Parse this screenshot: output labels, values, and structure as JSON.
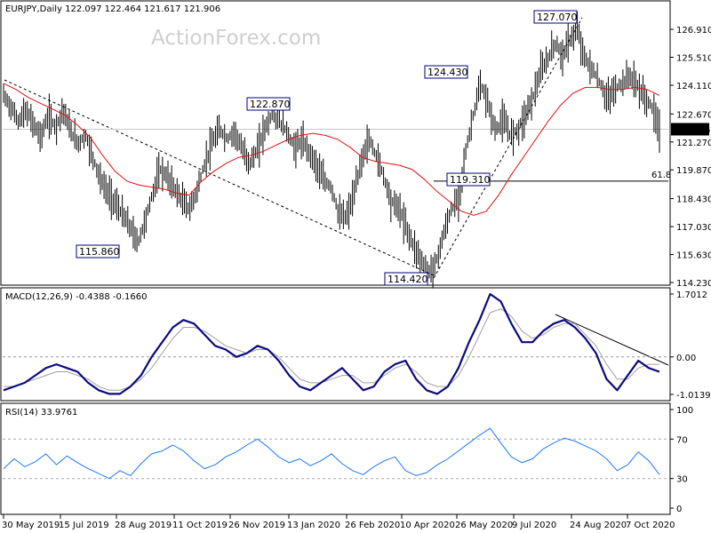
{
  "chart_data": [
    {
      "type": "candlestick",
      "title": "EURJPY,Daily  122.097 122.464 121.617 121.906",
      "watermark": "ActionForex.com",
      "y_range": [
        114.23,
        127.4
      ],
      "y_ticks": [
        "126.910",
        "125.510",
        "124.110",
        "122.670",
        "121.270",
        "119.870",
        "118.430",
        "117.030",
        "115.630",
        "114.230"
      ],
      "current_price": "121.906",
      "fib_label": "61.8",
      "fib_level": 119.31,
      "x_labels": [
        "30 May 2019",
        "15 Jul 2019",
        "28 Aug 2019",
        "11 Oct 2019",
        "26 Nov 2019",
        "13 Jan 2020",
        "26 Feb 2020",
        "10 Apr 2020",
        "26 May 2020",
        "9 Jul 2020",
        "24 Aug 2020",
        "7 Oct 2020"
      ],
      "annotations": [
        {
          "label": "122.870",
          "value": 122.87
        },
        {
          "label": "115.860",
          "value": 115.86
        },
        {
          "label": "124.430",
          "value": 124.43
        },
        {
          "label": "127.070",
          "value": 127.07
        },
        {
          "label": "119.310",
          "value": 119.31
        },
        {
          "label": "114.420",
          "value": 114.42
        }
      ],
      "close_path": [
        123.6,
        123.0,
        122.3,
        122.8,
        122.2,
        121.5,
        122.6,
        122.0,
        122.9,
        121.8,
        121.2,
        121.6,
        120.5,
        119.4,
        118.7,
        118.2,
        117.6,
        117.0,
        116.2,
        117.3,
        118.7,
        119.9,
        119.5,
        118.9,
        118.3,
        117.9,
        118.9,
        120.2,
        121.2,
        121.9,
        121.4,
        121.8,
        120.9,
        120.2,
        120.8,
        121.9,
        122.6,
        122.3,
        121.8,
        121.0,
        121.3,
        120.8,
        120.1,
        119.3,
        119.0,
        117.6,
        117.5,
        118.6,
        120.3,
        121.4,
        120.6,
        119.6,
        118.3,
        118.0,
        117.0,
        116.1,
        115.4,
        114.7,
        115.2,
        116.6,
        117.8,
        118.4,
        120.7,
        122.6,
        124.1,
        123.2,
        121.8,
        122.4,
        121.6,
        121.9,
        122.6,
        123.5,
        124.7,
        125.4,
        126.2,
        125.6,
        126.4,
        126.9,
        125.4,
        124.9,
        124.2,
        123.4,
        123.9,
        124.2,
        124.6,
        124.1,
        123.5,
        123.0,
        121.9
      ],
      "ma_path": [
        124.2,
        123.9,
        123.5,
        123.2,
        122.9,
        122.6,
        122.1,
        121.5,
        120.6,
        119.8,
        119.3,
        119.1,
        119.0,
        118.9,
        118.7,
        118.6,
        119.3,
        119.8,
        120.2,
        120.5,
        120.6,
        120.8,
        121.1,
        121.4,
        121.6,
        121.7,
        121.6,
        121.4,
        121.0,
        120.5,
        120.3,
        120.2,
        120.1,
        119.9,
        119.4,
        118.8,
        118.3,
        117.8,
        117.6,
        117.8,
        118.6,
        119.6,
        120.5,
        121.4,
        122.3,
        123.1,
        123.7,
        124.0,
        124.0,
        123.9,
        123.9,
        124.0,
        123.9,
        123.6
      ],
      "ma_label": "red moving average"
    },
    {
      "type": "macd",
      "title": "MACD(12,26,9) -0.4388 -0.1660",
      "y_range": [
        -1.0139,
        1.7012
      ],
      "y_ticks": [
        "1.7012",
        "0.00",
        "-1.0139"
      ],
      "zero_label": "0.00",
      "macd": [
        -0.9,
        -0.8,
        -0.7,
        -0.5,
        -0.3,
        -0.2,
        -0.3,
        -0.4,
        -0.7,
        -0.9,
        -1.0,
        -1.0,
        -0.8,
        -0.5,
        0.0,
        0.4,
        0.8,
        1.0,
        0.9,
        0.6,
        0.3,
        0.2,
        0.0,
        0.1,
        0.3,
        0.2,
        -0.1,
        -0.5,
        -0.8,
        -0.9,
        -0.7,
        -0.5,
        -0.3,
        -0.6,
        -0.9,
        -0.8,
        -0.4,
        -0.2,
        -0.1,
        -0.6,
        -0.9,
        -1.0,
        -0.8,
        -0.3,
        0.4,
        1.0,
        1.7,
        1.5,
        0.9,
        0.4,
        0.4,
        0.7,
        0.9,
        1.0,
        0.8,
        0.5,
        0.1,
        -0.6,
        -0.9,
        -0.5,
        -0.1,
        -0.3,
        -0.4
      ],
      "signal": [
        -0.8,
        -0.8,
        -0.7,
        -0.6,
        -0.5,
        -0.4,
        -0.4,
        -0.5,
        -0.6,
        -0.8,
        -0.9,
        -0.9,
        -0.8,
        -0.6,
        -0.3,
        0.1,
        0.5,
        0.8,
        0.8,
        0.7,
        0.5,
        0.3,
        0.2,
        0.1,
        0.2,
        0.2,
        0.0,
        -0.3,
        -0.6,
        -0.7,
        -0.7,
        -0.6,
        -0.5,
        -0.5,
        -0.7,
        -0.7,
        -0.5,
        -0.3,
        -0.2,
        -0.4,
        -0.7,
        -0.8,
        -0.8,
        -0.5,
        0.0,
        0.6,
        1.2,
        1.3,
        1.1,
        0.7,
        0.5,
        0.6,
        0.8,
        0.9,
        0.9,
        0.6,
        0.3,
        -0.2,
        -0.6,
        -0.6,
        -0.3,
        -0.2,
        -0.2
      ]
    },
    {
      "type": "rsi",
      "title": "RSI(14) 33.9761",
      "y_range": [
        0,
        100
      ],
      "y_ticks": [
        "100",
        "70",
        "30",
        "0"
      ],
      "rsi": [
        40,
        50,
        42,
        47,
        55,
        44,
        53,
        46,
        40,
        35,
        30,
        38,
        33,
        45,
        55,
        58,
        64,
        58,
        48,
        40,
        44,
        52,
        57,
        64,
        70,
        62,
        52,
        46,
        50,
        43,
        48,
        55,
        45,
        38,
        34,
        42,
        48,
        52,
        38,
        33,
        36,
        44,
        50,
        58,
        66,
        74,
        81,
        66,
        52,
        46,
        50,
        60,
        66,
        71,
        68,
        63,
        58,
        50,
        38,
        44,
        57,
        48,
        34
      ]
    }
  ]
}
